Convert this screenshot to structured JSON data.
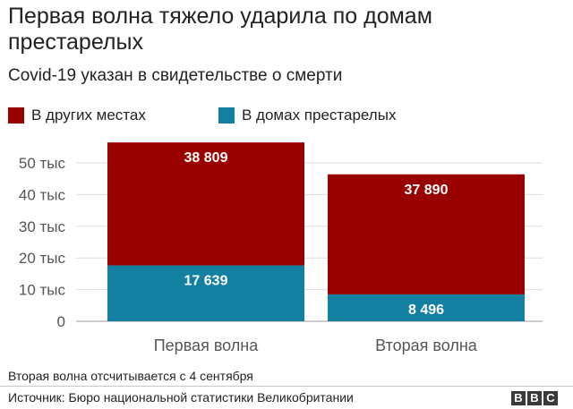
{
  "header": {
    "title": "Первая волна тяжело ударила по домам престарелых",
    "subtitle": "Covid-19 указан в свидетельстве о смерти"
  },
  "legend": [
    {
      "label": "В других местах",
      "color": "#990000"
    },
    {
      "label": "В домах престарелых",
      "color": "#1380a1"
    }
  ],
  "chart_data": {
    "type": "bar",
    "stacked": true,
    "categories": [
      "Первая волна",
      "Вторая волна"
    ],
    "series": [
      {
        "name": "В домах престарелых",
        "color": "#1380a1",
        "values": [
          17639,
          8496
        ],
        "labels": [
          "17 639",
          "8 496"
        ]
      },
      {
        "name": "В других местах",
        "color": "#990000",
        "values": [
          38809,
          37890
        ],
        "labels": [
          "38 809",
          "37 890"
        ]
      }
    ],
    "ylim": [
      0,
      56448
    ],
    "yticks": [
      {
        "value": 0,
        "label": "0"
      },
      {
        "value": 10000,
        "label": "10 тыс"
      },
      {
        "value": 20000,
        "label": "20 тыс"
      },
      {
        "value": 30000,
        "label": "30 тыс"
      },
      {
        "value": 40000,
        "label": "40 тыс"
      },
      {
        "value": 50000,
        "label": "50 тыс"
      }
    ],
    "grid": true,
    "legend_position": "top-left"
  },
  "footer": {
    "note": "Вторая волна отсчитывается с 4 сентября",
    "source": "Источник: Бюро национальной статистики Великобритании",
    "logo_letters": [
      "B",
      "B",
      "C"
    ]
  }
}
